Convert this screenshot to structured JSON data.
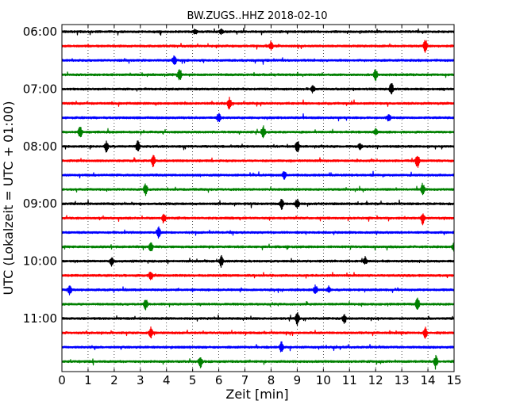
{
  "chart_data": {
    "type": "line",
    "title": "BW.ZUGS..HHZ 2018-02-10",
    "xlabel": "Zeit  [min]",
    "ylabel": "UTC (Lokalzeit = UTC + 01:00)",
    "xlim": [
      0,
      15
    ],
    "x_ticks": [
      0,
      1,
      2,
      3,
      4,
      5,
      6,
      7,
      8,
      9,
      10,
      11,
      12,
      13,
      14,
      15
    ],
    "y_tick_labels": [
      "06:00",
      "07:00",
      "08:00",
      "09:00",
      "10:00",
      "11:00"
    ],
    "trace_interval_min": 15,
    "grid": "vertical-dotted",
    "color_cycle": [
      "#000000",
      "#ff0000",
      "#0000ff",
      "#008000"
    ],
    "series": [
      {
        "start": "06:00",
        "events": [
          [
            5.1,
            0.6
          ],
          [
            6.1,
            0.5
          ]
        ]
      },
      {
        "start": "06:15",
        "events": [
          [
            8.0,
            1.0
          ],
          [
            13.9,
            1.6
          ]
        ]
      },
      {
        "start": "06:30",
        "events": [
          [
            4.3,
            1.3
          ]
        ]
      },
      {
        "start": "06:45",
        "events": [
          [
            4.5,
            1.4
          ],
          [
            12.0,
            1.5
          ]
        ]
      },
      {
        "start": "07:00",
        "events": [
          [
            9.6,
            0.8
          ],
          [
            12.6,
            1.6
          ]
        ]
      },
      {
        "start": "07:15",
        "events": [
          [
            6.4,
            1.4
          ]
        ]
      },
      {
        "start": "07:30",
        "events": [
          [
            6.0,
            1.0
          ],
          [
            12.5,
            0.9
          ]
        ]
      },
      {
        "start": "07:45",
        "events": [
          [
            0.7,
            1.4
          ],
          [
            7.7,
            1.5
          ],
          [
            12.0,
            0.8
          ]
        ]
      },
      {
        "start": "08:00",
        "events": [
          [
            1.7,
            1.2
          ],
          [
            2.9,
            1.2
          ],
          [
            9.0,
            1.6
          ],
          [
            11.4,
            0.7
          ]
        ]
      },
      {
        "start": "08:15",
        "events": [
          [
            3.5,
            1.3
          ],
          [
            13.6,
            1.6
          ]
        ]
      },
      {
        "start": "08:30",
        "events": [
          [
            8.5,
            1.0
          ]
        ]
      },
      {
        "start": "08:45",
        "events": [
          [
            3.2,
            1.4
          ],
          [
            13.8,
            1.4
          ]
        ]
      },
      {
        "start": "09:00",
        "events": [
          [
            8.4,
            1.3
          ],
          [
            9.0,
            1.0
          ]
        ]
      },
      {
        "start": "09:15",
        "events": [
          [
            3.9,
            1.2
          ],
          [
            13.8,
            1.4
          ]
        ]
      },
      {
        "start": "09:30",
        "events": [
          [
            3.7,
            1.3
          ]
        ]
      },
      {
        "start": "09:45",
        "events": [
          [
            3.4,
            1.5
          ],
          [
            15.0,
            1.4
          ]
        ]
      },
      {
        "start": "10:00",
        "events": [
          [
            1.9,
            0.9
          ],
          [
            6.1,
            1.3
          ],
          [
            11.6,
            0.8
          ]
        ]
      },
      {
        "start": "10:15",
        "events": [
          [
            3.4,
            1.1
          ]
        ]
      },
      {
        "start": "10:30",
        "events": [
          [
            0.3,
            1.1
          ],
          [
            9.7,
            1.1
          ],
          [
            10.2,
            0.7
          ]
        ]
      },
      {
        "start": "10:45",
        "events": [
          [
            3.2,
            1.3
          ],
          [
            13.6,
            1.5
          ]
        ]
      },
      {
        "start": "11:00",
        "events": [
          [
            9.0,
            1.5
          ],
          [
            10.8,
            0.9
          ]
        ]
      },
      {
        "start": "11:15",
        "events": [
          [
            3.4,
            1.1
          ],
          [
            13.9,
            1.2
          ]
        ]
      },
      {
        "start": "11:30",
        "events": [
          [
            8.4,
            1.2
          ]
        ]
      },
      {
        "start": "11:45",
        "events": [
          [
            5.3,
            1.3
          ],
          [
            14.3,
            1.2
          ]
        ]
      }
    ]
  }
}
